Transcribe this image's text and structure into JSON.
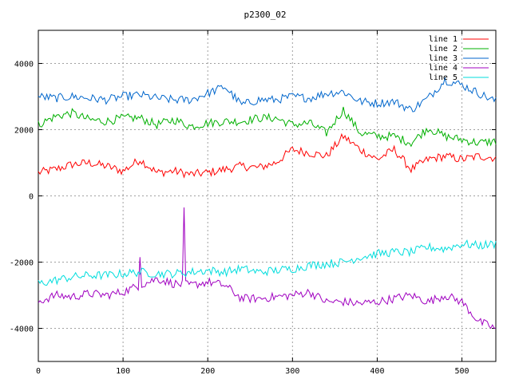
{
  "chart_data": {
    "type": "line",
    "title": "p2300_02",
    "xlabel": "",
    "ylabel": "",
    "xlim": [
      0,
      540
    ],
    "ylim": [
      -5000,
      5000
    ],
    "xticks": [
      0,
      100,
      200,
      300,
      400,
      500
    ],
    "yticks": [
      -4000,
      -2000,
      0,
      2000,
      4000
    ],
    "grid": true,
    "legend_position": "top-right",
    "x_step": 20,
    "series": [
      {
        "name": "line 1",
        "color": "#ff0000",
        "values": [
          700,
          800,
          950,
          1000,
          900,
          750,
          1100,
          700,
          750,
          650,
          700,
          800,
          900,
          850,
          1000,
          1400,
          1300,
          1200,
          1800,
          1400,
          1100,
          1400,
          800,
          1100,
          1200,
          1100,
          1200,
          1150
        ]
      },
      {
        "name": "line 2",
        "color": "#00b000",
        "values": [
          2150,
          2400,
          2500,
          2300,
          2250,
          2350,
          2350,
          2150,
          2300,
          2100,
          2200,
          2250,
          2250,
          2350,
          2350,
          2150,
          2200,
          1900,
          2600,
          1900,
          1800,
          1800,
          1600,
          2050,
          1800,
          1700,
          1600,
          1650
        ]
      },
      {
        "name": "line 3",
        "color": "#0066cc",
        "values": [
          3000,
          2950,
          3000,
          2950,
          2900,
          3000,
          3050,
          2950,
          2900,
          2900,
          3100,
          3300,
          2750,
          2900,
          2900,
          3000,
          2950,
          3100,
          3150,
          2850,
          2800,
          2850,
          2600,
          2950,
          3500,
          3350,
          3100,
          2850
        ]
      },
      {
        "name": "line 4",
        "color": "#a000c0",
        "values": [
          -3200,
          -3000,
          -3050,
          -2950,
          -3000,
          -2900,
          -2700,
          -2500,
          -2650,
          -2700,
          -2600,
          -2700,
          -3100,
          -3100,
          -3050,
          -3000,
          -2900,
          -3200,
          -3200,
          -3250,
          -3200,
          -3100,
          -3000,
          -3200,
          -3000,
          -3200,
          -3800,
          -4000
        ]
      },
      {
        "name": "line 5",
        "color": "#00dddd",
        "values": [
          -2650,
          -2550,
          -2450,
          -2400,
          -2400,
          -2350,
          -2300,
          -2350,
          -2350,
          -2300,
          -2250,
          -2300,
          -2200,
          -2300,
          -2250,
          -2200,
          -2100,
          -2050,
          -2000,
          -1850,
          -1750,
          -1700,
          -1700,
          -1550,
          -1600,
          -1450,
          -1500,
          -1450
        ]
      }
    ],
    "annotations": [
      {
        "series": "line 4",
        "x": 120,
        "y": -1850
      },
      {
        "series": "line 4",
        "x": 173,
        "y": -350
      }
    ]
  }
}
